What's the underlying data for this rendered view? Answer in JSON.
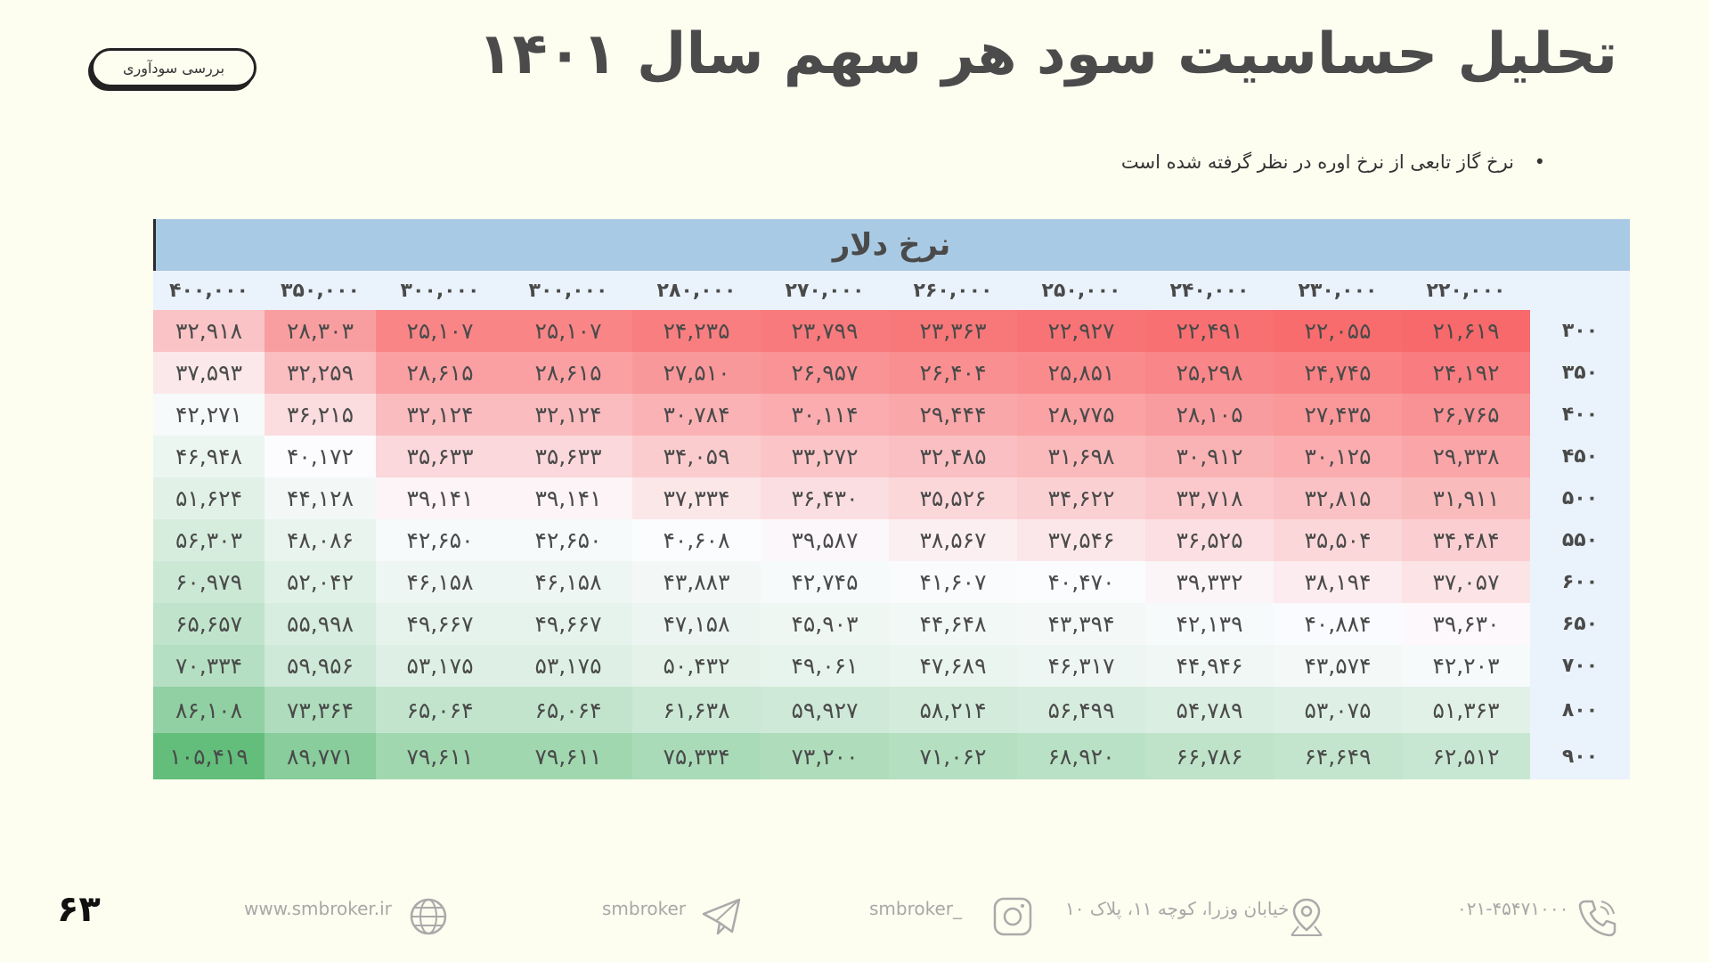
{
  "page_title": "تحلیل حساسیت سود هر سهم سال ۱۴۰۱",
  "badge": "بررسی سودآوری",
  "note": "نرخ گاز تابعی از نرخ اوره در نظر گرفته شده است",
  "table": {
    "header_title": "نرخ دلار",
    "columns": [
      "۲۲۰,۰۰۰",
      "۲۳۰,۰۰۰",
      "۲۴۰,۰۰۰",
      "۲۵۰,۰۰۰",
      "۲۶۰,۰۰۰",
      "۲۷۰,۰۰۰",
      "۲۸۰,۰۰۰",
      "۳۰۰,۰۰۰",
      "۳۰۰,۰۰۰",
      "۳۵۰,۰۰۰",
      "۴۰۰,۰۰۰"
    ],
    "rows": [
      {
        "label": "۳۰۰",
        "values": [
          "۲۱,۶۱۹",
          "۲۲,۰۵۵",
          "۲۲,۴۹۱",
          "۲۲,۹۲۷",
          "۲۳,۳۶۳",
          "۲۳,۷۹۹",
          "۲۴,۲۳۵",
          "۲۵,۱۰۷",
          "۲۵,۱۰۷",
          "۲۸,۳۰۳",
          "۳۲,۹۱۸"
        ],
        "nums": [
          21619,
          22055,
          22491,
          22927,
          23363,
          23799,
          24235,
          25107,
          25107,
          28303,
          32918
        ]
      },
      {
        "label": "۳۵۰",
        "values": [
          "۲۴,۱۹۲",
          "۲۴,۷۴۵",
          "۲۵,۲۹۸",
          "۲۵,۸۵۱",
          "۲۶,۴۰۴",
          "۲۶,۹۵۷",
          "۲۷,۵۱۰",
          "۲۸,۶۱۵",
          "۲۸,۶۱۵",
          "۳۲,۲۵۹",
          "۳۷,۵۹۳"
        ],
        "nums": [
          24192,
          24745,
          25298,
          25851,
          26404,
          26957,
          27510,
          28615,
          28615,
          32259,
          37593
        ]
      },
      {
        "label": "۴۰۰",
        "values": [
          "۲۶,۷۶۵",
          "۲۷,۴۳۵",
          "۲۸,۱۰۵",
          "۲۸,۷۷۵",
          "۲۹,۴۴۴",
          "۳۰,۱۱۴",
          "۳۰,۷۸۴",
          "۳۲,۱۲۴",
          "۳۲,۱۲۴",
          "۳۶,۲۱۵",
          "۴۲,۲۷۱"
        ],
        "nums": [
          26765,
          27435,
          28105,
          28775,
          29444,
          30114,
          30784,
          32124,
          32124,
          36215,
          42271
        ]
      },
      {
        "label": "۴۵۰",
        "values": [
          "۲۹,۳۳۸",
          "۳۰,۱۲۵",
          "۳۰,۹۱۲",
          "۳۱,۶۹۸",
          "۳۲,۴۸۵",
          "۳۳,۲۷۲",
          "۳۴,۰۵۹",
          "۳۵,۶۳۳",
          "۳۵,۶۳۳",
          "۴۰,۱۷۲",
          "۴۶,۹۴۸"
        ],
        "nums": [
          29338,
          30125,
          30912,
          31698,
          32485,
          33272,
          34059,
          35633,
          35633,
          40172,
          46948
        ]
      },
      {
        "label": "۵۰۰",
        "values": [
          "۳۱,۹۱۱",
          "۳۲,۸۱۵",
          "۳۳,۷۱۸",
          "۳۴,۶۲۲",
          "۳۵,۵۲۶",
          "۳۶,۴۳۰",
          "۳۷,۳۳۴",
          "۳۹,۱۴۱",
          "۳۹,۱۴۱",
          "۴۴,۱۲۸",
          "۵۱,۶۲۴"
        ],
        "nums": [
          31911,
          32815,
          33718,
          34622,
          35526,
          36430,
          37334,
          39141,
          39141,
          44128,
          51624
        ]
      },
      {
        "label": "۵۵۰",
        "values": [
          "۳۴,۴۸۴",
          "۳۵,۵۰۴",
          "۳۶,۵۲۵",
          "۳۷,۵۴۶",
          "۳۸,۵۶۷",
          "۳۹,۵۸۷",
          "۴۰,۶۰۸",
          "۴۲,۶۵۰",
          "۴۲,۶۵۰",
          "۴۸,۰۸۶",
          "۵۶,۳۰۳"
        ],
        "nums": [
          34484,
          35504,
          36525,
          37546,
          38567,
          39587,
          40608,
          42650,
          42650,
          48086,
          56303
        ]
      },
      {
        "label": "۶۰۰",
        "values": [
          "۳۷,۰۵۷",
          "۳۸,۱۹۴",
          "۳۹,۳۳۲",
          "۴۰,۴۷۰",
          "۴۱,۶۰۷",
          "۴۲,۷۴۵",
          "۴۳,۸۸۳",
          "۴۶,۱۵۸",
          "۴۶,۱۵۸",
          "۵۲,۰۴۲",
          "۶۰,۹۷۹"
        ],
        "nums": [
          37057,
          38194,
          39332,
          40470,
          41607,
          42745,
          43883,
          46158,
          46158,
          52042,
          60979
        ]
      },
      {
        "label": "۶۵۰",
        "values": [
          "۳۹,۶۳۰",
          "۴۰,۸۸۴",
          "۴۲,۱۳۹",
          "۴۳,۳۹۴",
          "۴۴,۶۴۸",
          "۴۵,۹۰۳",
          "۴۷,۱۵۸",
          "۴۹,۶۶۷",
          "۴۹,۶۶۷",
          "۵۵,۹۹۸",
          "۶۵,۶۵۷"
        ],
        "nums": [
          39630,
          40884,
          42139,
          43394,
          44648,
          45903,
          47158,
          49667,
          49667,
          55998,
          65657
        ]
      },
      {
        "label": "۷۰۰",
        "values": [
          "۴۲,۲۰۳",
          "۴۳,۵۷۴",
          "۴۴,۹۴۶",
          "۴۶,۳۱۷",
          "۴۷,۶۸۹",
          "۴۹,۰۶۱",
          "۵۰,۴۳۲",
          "۵۳,۱۷۵",
          "۵۳,۱۷۵",
          "۵۹,۹۵۶",
          "۷۰,۳۳۴"
        ],
        "nums": [
          42203,
          43574,
          44946,
          46317,
          47689,
          49061,
          50432,
          53175,
          53175,
          59956,
          70334
        ]
      },
      {
        "label": "۸۰۰",
        "values": [
          "۵۱,۳۶۳",
          "۵۳,۰۷۵",
          "۵۴,۷۸۹",
          "۵۶,۴۹۹",
          "۵۸,۲۱۴",
          "۵۹,۹۲۷",
          "۶۱,۶۳۸",
          "۶۵,۰۶۴",
          "۶۵,۰۶۴",
          "۷۳,۳۶۴",
          "۸۶,۱۰۸"
        ],
        "nums": [
          51363,
          53075,
          54789,
          56499,
          58214,
          59927,
          61638,
          65064,
          65064,
          73364,
          86108
        ]
      },
      {
        "label": "۹۰۰",
        "values": [
          "۶۲,۵۱۲",
          "۶۴,۶۴۹",
          "۶۶,۷۸۶",
          "۶۸,۹۲۰",
          "۷۱,۰۶۲",
          "۷۳,۲۰۰",
          "۷۵,۳۳۴",
          "۷۹,۶۱۱",
          "۷۹,۶۱۱",
          "۸۹,۷۷۱",
          "۱۰۵,۴۱۹"
        ],
        "nums": [
          62512,
          64649,
          66786,
          68920,
          71062,
          73200,
          75334,
          79611,
          79611,
          89771,
          105419
        ]
      }
    ]
  },
  "colors": {
    "low": "#f8696b",
    "mid": "#fcfcff",
    "high": "#63be7b"
  },
  "page_number": "۶۳",
  "footer": {
    "phone": "۰۲۱-۴۵۴۷۱۰۰۰",
    "address": "خیابان وزرا، کوچه ۱۱، پلاک ۱۰",
    "instagram": "smbroker_",
    "telegram": "smbroker",
    "website": "www.smbroker.ir"
  }
}
